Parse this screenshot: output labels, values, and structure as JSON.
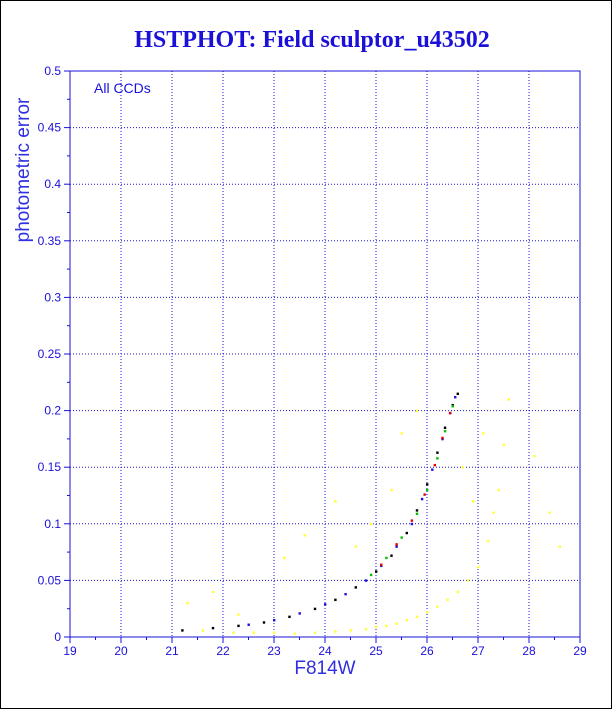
{
  "chart_data": {
    "type": "scatter",
    "title": "HSTPHOT: Field sculptor_u43502",
    "xlabel": "F814W",
    "ylabel": "photometric error",
    "annotation": "All CCDs",
    "xlim": [
      19,
      29
    ],
    "ylim": [
      0,
      0.5
    ],
    "xticks": [
      "19",
      "20",
      "21",
      "22",
      "23",
      "24",
      "25",
      "26",
      "27",
      "28",
      "29"
    ],
    "yticks": [
      "0",
      "0.05",
      "0.1",
      "0.15",
      "0.2",
      "0.25",
      "0.3",
      "0.35",
      "0.4",
      "0.45",
      "0.5"
    ],
    "grid": true,
    "colors": {
      "frame": "#1a10d8",
      "grid": "#1a10d8",
      "yellow": "#ffff33",
      "black": "#000000",
      "blue": "#1a10d8",
      "green": "#00c000",
      "red": "#e00000"
    },
    "series": [
      {
        "color": "#ffff33",
        "points": [
          [
            21.6,
            0.006
          ],
          [
            22.2,
            0.004
          ],
          [
            22.6,
            0.004
          ],
          [
            23.0,
            0.004
          ],
          [
            23.4,
            0.003
          ],
          [
            23.8,
            0.004
          ],
          [
            24.2,
            0.005
          ],
          [
            24.5,
            0.006
          ],
          [
            24.8,
            0.007
          ],
          [
            25.0,
            0.009
          ],
          [
            25.2,
            0.01
          ],
          [
            25.4,
            0.012
          ],
          [
            25.6,
            0.015
          ],
          [
            25.8,
            0.018
          ],
          [
            26.0,
            0.022
          ],
          [
            26.2,
            0.027
          ],
          [
            26.4,
            0.033
          ],
          [
            26.6,
            0.04
          ],
          [
            26.8,
            0.05
          ],
          [
            27.0,
            0.062
          ],
          [
            27.2,
            0.085
          ],
          [
            27.3,
            0.11
          ],
          [
            27.4,
            0.13
          ],
          [
            27.5,
            0.17
          ],
          [
            27.6,
            0.21
          ],
          [
            21.3,
            0.03
          ],
          [
            21.8,
            0.04
          ],
          [
            22.3,
            0.02
          ],
          [
            23.2,
            0.07
          ],
          [
            23.6,
            0.09
          ],
          [
            24.2,
            0.12
          ],
          [
            24.6,
            0.08
          ],
          [
            24.9,
            0.1
          ],
          [
            25.3,
            0.13
          ],
          [
            25.5,
            0.18
          ],
          [
            25.8,
            0.2
          ],
          [
            26.7,
            0.15
          ],
          [
            26.9,
            0.12
          ],
          [
            27.1,
            0.18
          ],
          [
            28.1,
            0.16
          ],
          [
            28.4,
            0.11
          ],
          [
            28.6,
            0.08
          ]
        ]
      },
      {
        "color": "#000000",
        "points": [
          [
            21.2,
            0.006
          ],
          [
            21.8,
            0.008
          ],
          [
            22.3,
            0.01
          ],
          [
            22.8,
            0.013
          ],
          [
            23.3,
            0.018
          ],
          [
            23.8,
            0.025
          ],
          [
            24.2,
            0.033
          ],
          [
            24.6,
            0.044
          ],
          [
            25.0,
            0.058
          ],
          [
            25.3,
            0.072
          ],
          [
            25.6,
            0.092
          ],
          [
            25.8,
            0.112
          ],
          [
            26.0,
            0.135
          ],
          [
            26.2,
            0.163
          ],
          [
            26.35,
            0.185
          ],
          [
            26.5,
            0.205
          ],
          [
            26.6,
            0.215
          ]
        ]
      },
      {
        "color": "#1a10d8",
        "points": [
          [
            22.5,
            0.011
          ],
          [
            23.0,
            0.015
          ],
          [
            23.5,
            0.021
          ],
          [
            24.0,
            0.029
          ],
          [
            24.4,
            0.038
          ],
          [
            24.8,
            0.05
          ],
          [
            25.1,
            0.063
          ],
          [
            25.4,
            0.08
          ],
          [
            25.7,
            0.1
          ],
          [
            25.9,
            0.122
          ],
          [
            26.1,
            0.148
          ],
          [
            26.3,
            0.175
          ],
          [
            26.45,
            0.198
          ],
          [
            26.55,
            0.212
          ]
        ]
      },
      {
        "color": "#00c000",
        "points": [
          [
            24.9,
            0.055
          ],
          [
            25.2,
            0.07
          ],
          [
            25.5,
            0.088
          ],
          [
            25.8,
            0.109
          ],
          [
            26.0,
            0.13
          ],
          [
            26.2,
            0.158
          ],
          [
            26.35,
            0.182
          ],
          [
            26.5,
            0.204
          ]
        ]
      },
      {
        "color": "#e00000",
        "points": [
          [
            25.1,
            0.064
          ],
          [
            25.4,
            0.082
          ],
          [
            25.7,
            0.103
          ],
          [
            25.95,
            0.126
          ],
          [
            26.15,
            0.152
          ],
          [
            26.3,
            0.176
          ],
          [
            26.45,
            0.198
          ]
        ]
      }
    ]
  }
}
